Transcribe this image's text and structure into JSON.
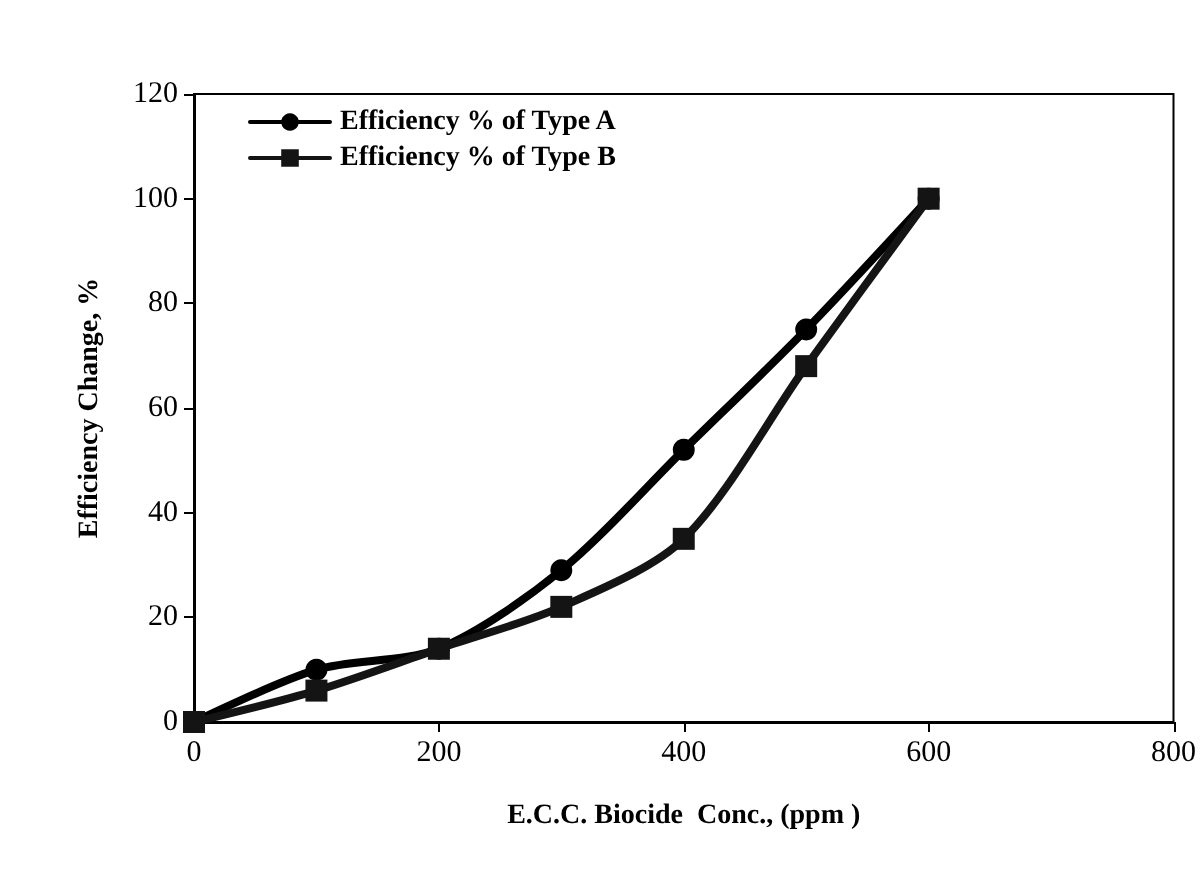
{
  "chart_data": {
    "type": "line",
    "xlabel": "E.C.C. Biocide  Conc., (ppm )",
    "ylabel": "Efficiency Change, %",
    "x": [
      0,
      100,
      200,
      300,
      400,
      500,
      600
    ],
    "series": [
      {
        "name": "Efficiency % of Type A",
        "color": "#000000",
        "marker": "circle",
        "values": [
          0,
          10,
          14,
          29,
          52,
          75,
          100
        ]
      },
      {
        "name": "Efficiency % of Type B",
        "color": "#141414",
        "marker": "square",
        "values": [
          0,
          6,
          14,
          22,
          35,
          68,
          100
        ]
      }
    ],
    "xlim": [
      0,
      800
    ],
    "xticks": [
      0,
      200,
      400,
      600,
      800
    ],
    "ylim": [
      0,
      120
    ],
    "yticks": [
      0,
      20,
      40,
      60,
      80,
      100,
      120
    ],
    "grid": false,
    "legend": "top left",
    "line_style": "solid"
  }
}
